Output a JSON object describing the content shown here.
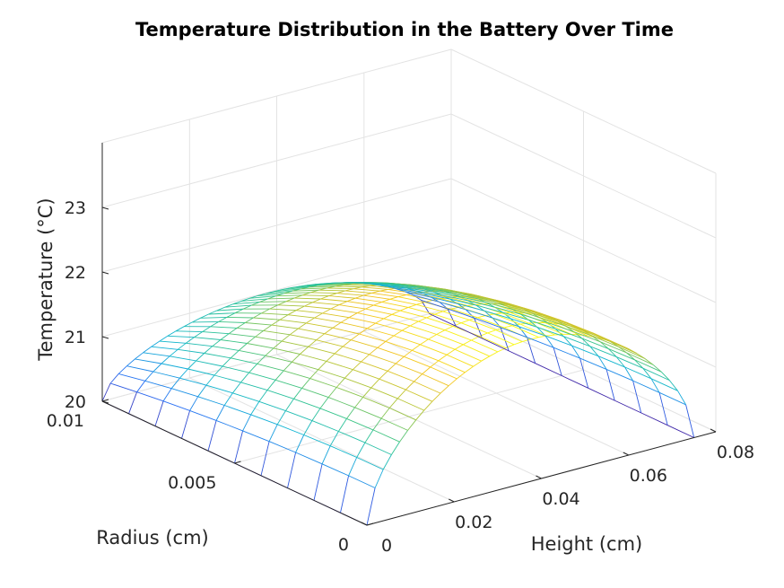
{
  "chart_data": {
    "type": "surface-mesh",
    "title": "Temperature Distribution in the Battery Over Time",
    "xlabel": "Height (cm)",
    "ylabel": "Radius (cm)",
    "zlabel": "Temperature (°C)",
    "xlim": [
      0,
      0.08
    ],
    "ylim": [
      0,
      0.01
    ],
    "zlim": [
      20,
      24
    ],
    "x_ticks": [
      "0",
      "0.02",
      "0.04",
      "0.06",
      "0.08"
    ],
    "y_ticks": [
      "0",
      "0.005",
      "0.01"
    ],
    "z_ticks": [
      "20",
      "21",
      "22",
      "23"
    ],
    "grid": true,
    "colormap": "parula",
    "height_extent": 0.075,
    "peak_temperature": 22.2,
    "boundary_temperature": 20.0,
    "colormap_stops": [
      "#3e26a8",
      "#2a6ff5",
      "#10b4d4",
      "#32c48f",
      "#abc53a",
      "#f4c41f",
      "#f9fb15"
    ]
  }
}
